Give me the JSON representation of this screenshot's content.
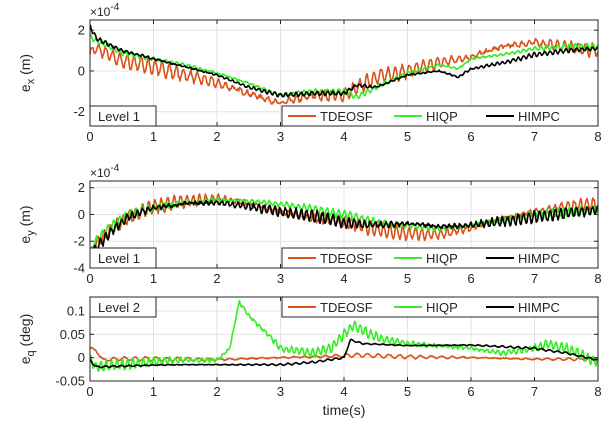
{
  "chart_data": [
    {
      "type": "line",
      "ylabel": "e_x (m)",
      "ylabel_main": "e",
      "ylabel_sub": "x",
      "ylabel_unit": "(m)",
      "exponent_text": "×10",
      "exponent_power": "-4",
      "xlim": [
        0,
        8
      ],
      "ylim": [
        -2.7,
        2.5
      ],
      "xticks": [
        0,
        1,
        2,
        3,
        4,
        5,
        6,
        7,
        8
      ],
      "yticks": [
        -2,
        0,
        2
      ],
      "level_label": "Level 1",
      "legend": [
        "TDEOSF",
        "HIQP",
        "HIMPC"
      ],
      "grid": true,
      "legend_placement": "bottom-right",
      "series": [
        {
          "name": "TDEOSF",
          "color": "#d95319",
          "x": [
            0,
            0.1,
            0.5,
            1.0,
            1.5,
            2.0,
            2.5,
            3.0,
            3.5,
            4.0,
            4.5,
            5.0,
            5.5,
            6.0,
            6.5,
            7.0,
            7.5,
            8.0
          ],
          "y": [
            0.9,
            1.1,
            0.5,
            0.2,
            -0.2,
            -0.6,
            -1.1,
            -1.6,
            -1.2,
            -1.2,
            -0.3,
            0.0,
            0.4,
            0.7,
            1.2,
            1.4,
            1.2,
            1.0
          ],
          "osc": 0.35,
          "freq": 9
        },
        {
          "name": "HIQP",
          "color": "#33ee22",
          "x": [
            0,
            0.1,
            0.5,
            1.0,
            1.5,
            2.0,
            2.5,
            3.0,
            3.5,
            4.0,
            4.2,
            4.5,
            5.0,
            5.5,
            5.8,
            6.0,
            6.5,
            7.0,
            7.5,
            8.0
          ],
          "y": [
            1.7,
            1.5,
            0.9,
            0.6,
            0.3,
            -0.1,
            -0.6,
            -1.2,
            -1.0,
            -1.0,
            -1.3,
            -0.8,
            -0.1,
            0.3,
            0.1,
            0.6,
            0.8,
            1.1,
            1.2,
            1.2
          ],
          "osc": 0.12,
          "freq": 11
        },
        {
          "name": "HIMPC",
          "color": "#000000",
          "x": [
            0,
            0.1,
            0.5,
            1.0,
            1.5,
            2.0,
            2.5,
            3.0,
            3.5,
            4.0,
            4.2,
            4.5,
            5.0,
            5.5,
            5.8,
            6.0,
            6.5,
            7.0,
            7.5,
            8.0
          ],
          "y": [
            2.2,
            1.6,
            1.0,
            0.6,
            0.2,
            -0.2,
            -0.8,
            -1.2,
            -1.1,
            -1.1,
            -0.7,
            -0.8,
            -0.2,
            0.0,
            -0.3,
            0.1,
            0.4,
            0.8,
            1.0,
            1.1
          ],
          "osc": 0.1,
          "freq": 12
        }
      ]
    },
    {
      "type": "line",
      "ylabel": "e_y (m)",
      "ylabel_main": "e",
      "ylabel_sub": "y",
      "ylabel_unit": "(m)",
      "exponent_text": "×10",
      "exponent_power": "-4",
      "xlim": [
        0,
        8
      ],
      "ylim": [
        -4,
        2.5
      ],
      "xticks": [
        0,
        1,
        2,
        3,
        4,
        5,
        6,
        7,
        8
      ],
      "yticks": [
        -4,
        -2,
        0,
        2
      ],
      "level_label": "Level 1",
      "legend": [
        "TDEOSF",
        "HIQP",
        "HIMPC"
      ],
      "grid": true,
      "legend_placement": "bottom-right",
      "series": [
        {
          "name": "TDEOSF",
          "color": "#d95319",
          "x": [
            0,
            0.05,
            0.3,
            0.6,
            1.0,
            1.5,
            2.0,
            2.5,
            3.0,
            3.5,
            4.0,
            4.5,
            5.0,
            5.5,
            6.0,
            6.5,
            7.0,
            7.5,
            8.0
          ],
          "y": [
            -3.5,
            -2.5,
            -1.2,
            -0.2,
            0.6,
            1.0,
            1.2,
            0.8,
            0.2,
            -0.3,
            -0.5,
            -1.1,
            -1.4,
            -1.5,
            -1.0,
            -0.3,
            0.2,
            0.6,
            0.8
          ],
          "osc": 0.5,
          "freq": 10
        },
        {
          "name": "HIQP",
          "color": "#33ee22",
          "x": [
            0,
            0.05,
            0.3,
            0.6,
            1.0,
            1.5,
            2.0,
            2.5,
            3.0,
            3.5,
            4.0,
            4.5,
            5.0,
            5.5,
            6.0,
            6.5,
            7.0,
            7.5,
            8.0
          ],
          "y": [
            -3.0,
            -2.2,
            -1.0,
            0.0,
            0.5,
            0.9,
            1.1,
            1.0,
            0.8,
            0.4,
            0.0,
            -0.6,
            -0.8,
            -1.1,
            -0.8,
            -0.4,
            0.0,
            0.2,
            0.4
          ],
          "osc": 0.3,
          "freq": 11
        },
        {
          "name": "HIMPC",
          "color": "#000000",
          "x": [
            0,
            0.05,
            0.3,
            0.6,
            1.0,
            1.5,
            2.0,
            2.5,
            3.0,
            3.5,
            4.0,
            4.5,
            5.0,
            5.5,
            6.0,
            6.5,
            7.0,
            7.5,
            8.0
          ],
          "y": [
            -3.8,
            -2.8,
            -1.4,
            -0.2,
            0.5,
            0.8,
            0.9,
            0.6,
            0.2,
            -0.1,
            -0.6,
            -0.8,
            -0.7,
            -0.9,
            -0.8,
            -0.5,
            -0.2,
            0.1,
            0.3
          ],
          "osc": 0.4,
          "freq": 12
        }
      ]
    },
    {
      "type": "line",
      "ylabel": "e_q (deg)",
      "ylabel_main": "e",
      "ylabel_sub": "q",
      "ylabel_unit": "(deg)",
      "xlabel": "time(s)",
      "xlim": [
        0,
        8
      ],
      "ylim": [
        -0.05,
        0.13
      ],
      "xticks": [
        0,
        1,
        2,
        3,
        4,
        5,
        6,
        7,
        8
      ],
      "yticks": [
        -0.05,
        0,
        0.05,
        0.1
      ],
      "yticklabels": [
        "-0.05",
        "0",
        "0.05",
        "0.1"
      ],
      "level_label": "Level 2",
      "legend": [
        "TDEOSF",
        "HIQP",
        "HIMPC"
      ],
      "grid": true,
      "legend_placement": "top-right",
      "series": [
        {
          "name": "TDEOSF",
          "color": "#d95319",
          "x": [
            0,
            0.1,
            0.2,
            0.5,
            1.0,
            2.0,
            3.0,
            4.0,
            4.2,
            4.5,
            5.0,
            6.0,
            7.0,
            7.5,
            8.0
          ],
          "y": [
            0.02,
            0.015,
            -0.005,
            -0.002,
            -0.003,
            -0.004,
            0.0,
            0.004,
            0.006,
            0.004,
            0.002,
            0.0,
            -0.003,
            -0.003,
            -0.003
          ],
          "osc": 0.004,
          "freq": 6
        },
        {
          "name": "HIQP",
          "color": "#33ee22",
          "x": [
            0,
            0.1,
            0.5,
            1.0,
            1.5,
            2.0,
            2.2,
            2.35,
            2.5,
            2.8,
            3.0,
            3.5,
            3.8,
            4.0,
            4.15,
            4.4,
            4.6,
            5.0,
            5.5,
            6.0,
            6.5,
            7.0,
            7.2,
            7.5,
            8.0
          ],
          "y": [
            -0.005,
            -0.02,
            -0.015,
            -0.008,
            -0.005,
            -0.005,
            0.02,
            0.12,
            0.09,
            0.05,
            0.02,
            0.01,
            0.02,
            0.05,
            0.07,
            0.05,
            0.04,
            0.03,
            0.025,
            0.02,
            0.01,
            0.02,
            0.03,
            0.02,
            -0.01
          ],
          "osc": 0.01,
          "freq": 12
        },
        {
          "name": "HIMPC",
          "color": "#000000",
          "x": [
            0,
            0.1,
            0.5,
            1.0,
            1.5,
            2.0,
            3.0,
            3.5,
            4.0,
            4.1,
            4.3,
            5.0,
            6.0,
            7.0,
            7.5,
            8.0
          ],
          "y": [
            -0.005,
            -0.02,
            -0.018,
            -0.016,
            -0.015,
            -0.015,
            -0.015,
            -0.01,
            0.0,
            0.038,
            0.03,
            0.026,
            0.027,
            0.02,
            0.01,
            -0.005
          ],
          "osc": 0.002,
          "freq": 8
        }
      ]
    }
  ]
}
